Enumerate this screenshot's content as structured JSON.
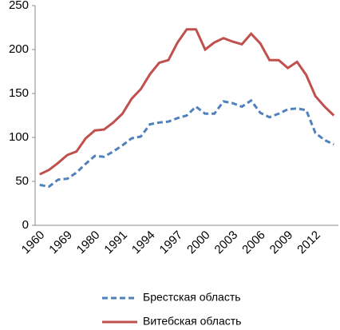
{
  "chart_data": {
    "type": "line",
    "categories": [
      "1960",
      null,
      null,
      "1969",
      null,
      null,
      "1980",
      null,
      null,
      "1991",
      null,
      null,
      "1994",
      null,
      null,
      "1997",
      null,
      null,
      "2000",
      null,
      null,
      "2003",
      null,
      null,
      "2006",
      null,
      null,
      "2009",
      null,
      null,
      "2012",
      null,
      null
    ],
    "series": [
      {
        "name": "Брестская область",
        "color": "#4f81bd",
        "dashed": true,
        "values": [
          46,
          44,
          52,
          53,
          60,
          70,
          79,
          78,
          84,
          91,
          99,
          101,
          115,
          117,
          118,
          122,
          125,
          135,
          127,
          127,
          141,
          139,
          135,
          142,
          128,
          123,
          127,
          132,
          133,
          131,
          105,
          97,
          92
        ]
      },
      {
        "name": "Витебская область",
        "color": "#c0504d",
        "dashed": false,
        "values": [
          58,
          63,
          71,
          80,
          84,
          99,
          108,
          109,
          117,
          127,
          144,
          155,
          172,
          185,
          188,
          208,
          223,
          223,
          200,
          208,
          213,
          209,
          206,
          218,
          207,
          188,
          188,
          179,
          186,
          171,
          147,
          135,
          125
        ]
      }
    ],
    "ylim": [
      0,
      250
    ],
    "yticks": [
      0,
      50,
      100,
      150,
      200,
      250
    ],
    "grid": false
  }
}
